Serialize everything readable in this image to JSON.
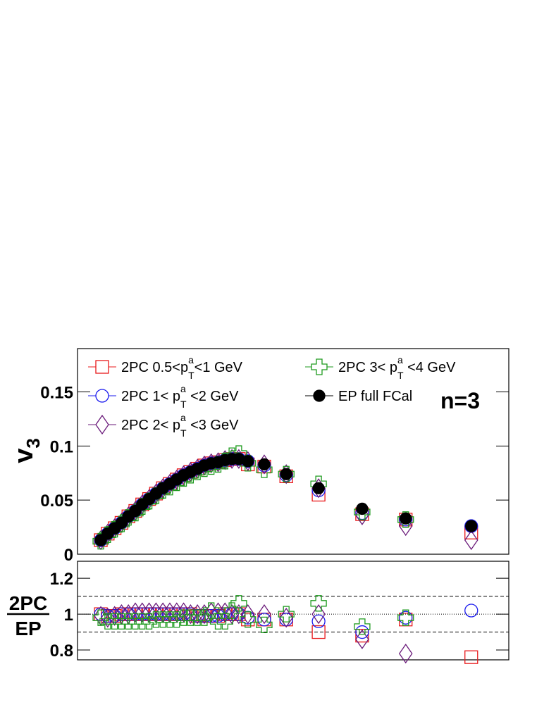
{
  "chart_data": [
    {
      "type": "scatter",
      "ylabel": {
        "main": "v",
        "sub": "3"
      },
      "annotation": "n=3",
      "xlim": [
        0,
        100
      ],
      "ylim": [
        0,
        0.19
      ],
      "yticks": [
        0,
        0.05,
        0.1,
        0.15
      ],
      "x": [
        5.4,
        7.0,
        8.6,
        10.2,
        11.8,
        13.4,
        15.0,
        16.6,
        18.2,
        19.8,
        21.4,
        23.0,
        24.6,
        26.2,
        27.8,
        29.4,
        31.0,
        32.6,
        34.2,
        35.8,
        37.4,
        39.5,
        43.3,
        48.4,
        55.9,
        66.0,
        76.1,
        91.3
      ],
      "series": [
        {
          "name": {
            "pre": "2PC 0.5<p",
            "sup": "a",
            "sub": "T",
            "post": "<1 GeV"
          },
          "color": "#e8191b",
          "marker": "square",
          "values": [
            0.013,
            0.019,
            0.024,
            0.029,
            0.035,
            0.04,
            0.046,
            0.051,
            0.056,
            0.061,
            0.065,
            0.069,
            0.073,
            0.076,
            0.079,
            0.082,
            0.084,
            0.085,
            0.087,
            0.088,
            0.088,
            0.083,
            0.081,
            0.072,
            0.055,
            0.037,
            0.032,
            0.02
          ]
        },
        {
          "name": {
            "pre": "2PC 1< p",
            "sup": "a",
            "sub": "T",
            "post": " <2 GeV"
          },
          "color": "#1a1aee",
          "marker": "circle",
          "values": [
            0.013,
            0.019,
            0.024,
            0.029,
            0.035,
            0.04,
            0.046,
            0.051,
            0.056,
            0.061,
            0.065,
            0.069,
            0.073,
            0.076,
            0.079,
            0.082,
            0.084,
            0.085,
            0.087,
            0.088,
            0.088,
            0.086,
            0.082,
            0.073,
            0.059,
            0.038,
            0.032,
            0.026
          ]
        },
        {
          "name": {
            "pre": "2PC 2< p",
            "sup": "a",
            "sub": "T",
            "post": " <3 GeV"
          },
          "color": "#6a1a7a",
          "marker": "diamond",
          "values": [
            0.013,
            0.019,
            0.024,
            0.029,
            0.035,
            0.04,
            0.046,
            0.051,
            0.056,
            0.061,
            0.065,
            0.069,
            0.073,
            0.076,
            0.079,
            0.082,
            0.084,
            0.085,
            0.087,
            0.088,
            0.088,
            0.086,
            0.083,
            0.074,
            0.061,
            0.036,
            0.026,
            0.013
          ]
        },
        {
          "name": {
            "pre": "2PC 3< p",
            "sup": "a",
            "sub": "T",
            "post": " <4 GeV"
          },
          "color": "#1e9a1e",
          "marker": "cross",
          "values": [
            0.012,
            0.018,
            0.023,
            0.028,
            0.034,
            0.038,
            0.044,
            0.049,
            0.054,
            0.059,
            0.062,
            0.066,
            0.07,
            0.073,
            0.076,
            0.079,
            0.081,
            0.083,
            0.086,
            0.091,
            0.093,
            0.084,
            0.078,
            0.074,
            0.065,
            0.039,
            0.032,
            null
          ]
        },
        {
          "name": {
            "pre": "EP full FCal"
          },
          "color": "#000000",
          "marker": "dot",
          "values": [
            0.013,
            0.019,
            0.024,
            0.029,
            0.035,
            0.04,
            0.046,
            0.051,
            0.056,
            0.061,
            0.065,
            0.069,
            0.073,
            0.076,
            0.079,
            0.082,
            0.084,
            0.085,
            0.087,
            0.088,
            0.088,
            0.086,
            0.083,
            0.074,
            0.061,
            0.042,
            0.033,
            0.026
          ]
        }
      ]
    },
    {
      "type": "scatter",
      "ylabel": {
        "num": "2PC",
        "den": "EP"
      },
      "xlim": [
        0,
        100
      ],
      "ylim": [
        0.745,
        1.295
      ],
      "yticks": [
        0.8,
        1,
        1.2
      ],
      "hlines": [
        {
          "value": 1.1,
          "style": "dashed"
        },
        {
          "value": 1,
          "style": "dotted"
        },
        {
          "value": 0.9,
          "style": "dashed"
        }
      ],
      "x": [
        5.4,
        7.0,
        8.6,
        10.2,
        11.8,
        13.4,
        15.0,
        16.6,
        18.2,
        19.8,
        21.4,
        23.0,
        24.6,
        26.2,
        27.8,
        29.4,
        31.0,
        32.6,
        34.2,
        35.8,
        37.4,
        39.5,
        43.3,
        48.4,
        55.9,
        66.0,
        76.1,
        91.3
      ],
      "series": [
        {
          "color": "#e8191b",
          "marker": "square",
          "values": [
            1.0,
            0.99,
            0.99,
            1.0,
            1.0,
            1.0,
            1.0,
            1.0,
            1.0,
            1.0,
            1.0,
            1.0,
            1.0,
            1.0,
            0.99,
            0.99,
            0.99,
            0.99,
            1.0,
            1.0,
            1.0,
            0.97,
            0.97,
            0.97,
            0.9,
            0.88,
            0.97,
            0.76
          ]
        },
        {
          "color": "#1a1aee",
          "marker": "circle",
          "values": [
            1.0,
            0.99,
            0.99,
            1.0,
            1.0,
            1.0,
            1.0,
            1.0,
            1.0,
            1.0,
            1.0,
            1.0,
            1.0,
            1.0,
            0.99,
            0.99,
            0.99,
            0.99,
            1.0,
            1.0,
            1.0,
            0.98,
            0.97,
            0.97,
            0.96,
            0.9,
            0.98,
            1.02
          ]
        },
        {
          "color": "#6a1a7a",
          "marker": "diamond",
          "values": [
            0.99,
            0.98,
            0.99,
            1.0,
            1.0,
            1.01,
            1.01,
            1.01,
            1.01,
            1.01,
            1.01,
            1.01,
            1.01,
            1.0,
            1.0,
            1.0,
            1.01,
            1.01,
            1.01,
            1.0,
            1.0,
            1.0,
            1.0,
            0.98,
            1.0,
            0.86,
            0.78,
            null
          ]
        },
        {
          "color": "#1e9a1e",
          "marker": "cross",
          "values": [
            0.98,
            0.96,
            0.96,
            0.96,
            0.96,
            0.96,
            0.96,
            0.96,
            0.97,
            0.97,
            0.97,
            0.97,
            0.98,
            0.98,
            0.98,
            0.98,
            1.02,
            0.96,
            0.96,
            1.02,
            1.06,
            0.97,
            0.94,
            1.0,
            1.06,
            0.93,
            0.98,
            null
          ]
        }
      ]
    }
  ]
}
